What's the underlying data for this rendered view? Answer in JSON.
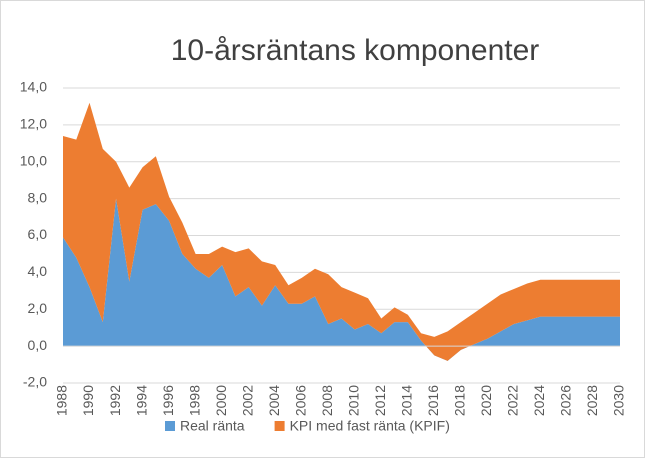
{
  "chart_data": {
    "type": "stacked-area",
    "title": "10-årsräntans komponenter",
    "categories": [
      "1988",
      null,
      "1990",
      null,
      "1992",
      null,
      "1994",
      null,
      "1996",
      null,
      "1998",
      null,
      "2000",
      null,
      "2002",
      null,
      "2004",
      null,
      "2006",
      null,
      "2008",
      null,
      "2010",
      null,
      "2012",
      null,
      "2014",
      null,
      "2016",
      null,
      "2018",
      null,
      "2020",
      null,
      "2022",
      null,
      "2024",
      null,
      "2026",
      null,
      "2028",
      null,
      "2030"
    ],
    "series": [
      {
        "name": "Real ränta",
        "color": "#5b9bd5",
        "values": [
          5.9,
          4.8,
          3.2,
          1.3,
          8.0,
          3.5,
          7.4,
          7.7,
          6.8,
          5.0,
          4.2,
          3.7,
          4.4,
          2.7,
          3.2,
          2.2,
          3.3,
          2.3,
          2.3,
          2.7,
          1.2,
          1.5,
          0.9,
          1.2,
          0.7,
          1.3,
          1.3,
          0.3,
          -0.5,
          -0.8,
          -0.2,
          0.1,
          0.4,
          0.8,
          1.2,
          1.4,
          1.6,
          1.6,
          1.6,
          1.6,
          1.6,
          1.6,
          1.6
        ]
      },
      {
        "name": "KPI med fast ränta (KPIF)",
        "color": "#ed7d31",
        "values": [
          5.5,
          6.4,
          10.0,
          9.4,
          2.0,
          5.1,
          2.3,
          2.6,
          1.3,
          1.7,
          0.8,
          1.3,
          1.0,
          2.4,
          2.1,
          2.4,
          1.1,
          1.0,
          1.4,
          1.5,
          2.7,
          1.7,
          2.0,
          1.4,
          0.8,
          0.8,
          0.4,
          0.4,
          1.0,
          1.6,
          1.5,
          1.7,
          1.9,
          2.0,
          1.9,
          2.0,
          2.0,
          2.0,
          2.0,
          2.0,
          2.0,
          2.0,
          2.0
        ]
      }
    ],
    "ylim": [
      -2,
      14
    ],
    "yticks": [
      {
        "value": -2,
        "label": "-2,0"
      },
      {
        "value": 0,
        "label": "0,0"
      },
      {
        "value": 2,
        "label": "2,0"
      },
      {
        "value": 4,
        "label": "4,0"
      },
      {
        "value": 6,
        "label": "6,0"
      },
      {
        "value": 8,
        "label": "8,0"
      },
      {
        "value": 10,
        "label": "10,0"
      },
      {
        "value": 12,
        "label": "12,0"
      },
      {
        "value": 14,
        "label": "14,0"
      }
    ],
    "grid": true,
    "legend": "bottom"
  }
}
